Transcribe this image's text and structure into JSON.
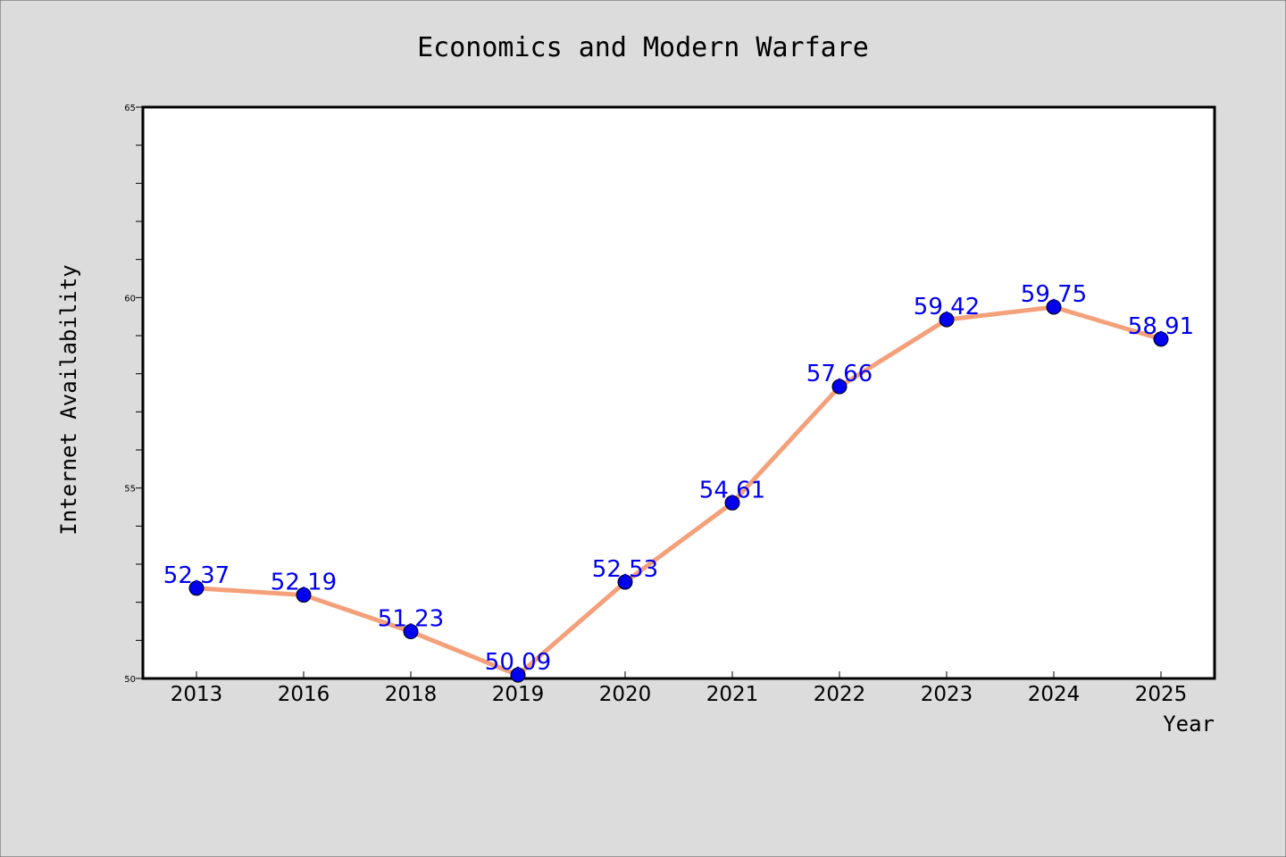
{
  "chart_data": {
    "type": "line",
    "title": "Economics and Modern Warfare",
    "xlabel": "Year",
    "ylabel": "Internet Availability",
    "categories": [
      "2013",
      "2016",
      "2018",
      "2019",
      "2020",
      "2021",
      "2022",
      "2023",
      "2024",
      "2025"
    ],
    "series": [
      {
        "values": [
          52.37,
          52.19,
          51.23,
          50.09,
          52.53,
          54.61,
          57.66,
          59.42,
          59.75,
          58.91
        ]
      }
    ],
    "data_labels": [
      "52.37",
      "52.19",
      "51.23",
      "50.09",
      "52.53",
      "54.61",
      "57.66",
      "59.42",
      "59.75",
      "58.91"
    ],
    "ylim": [
      50,
      65
    ],
    "yticks": [
      50,
      55,
      60,
      65
    ],
    "grid": false,
    "colors": {
      "background": "#dcdcdc",
      "plot_background": "#ffffff",
      "line": "#f4a07a",
      "marker": "#0000ee",
      "data_label": "#0000ee"
    }
  }
}
